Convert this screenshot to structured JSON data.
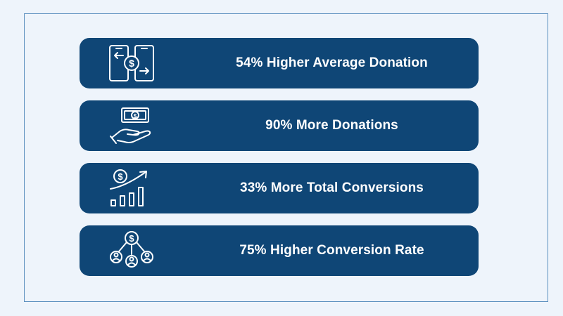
{
  "stats": [
    {
      "label": "54% Higher Average Donation",
      "icon": "phone-transfer-dollar-icon"
    },
    {
      "label": "90% More Donations",
      "icon": "hand-cash-icon"
    },
    {
      "label": "33% More Total Conversions",
      "icon": "dollar-growth-chart-icon"
    },
    {
      "label": "75% Higher Conversion Rate",
      "icon": "dollar-network-users-icon"
    }
  ],
  "colors": {
    "background": "#eef4fb",
    "frame_border": "#5b8fbe",
    "card": "#0f4676",
    "text": "#ffffff"
  }
}
